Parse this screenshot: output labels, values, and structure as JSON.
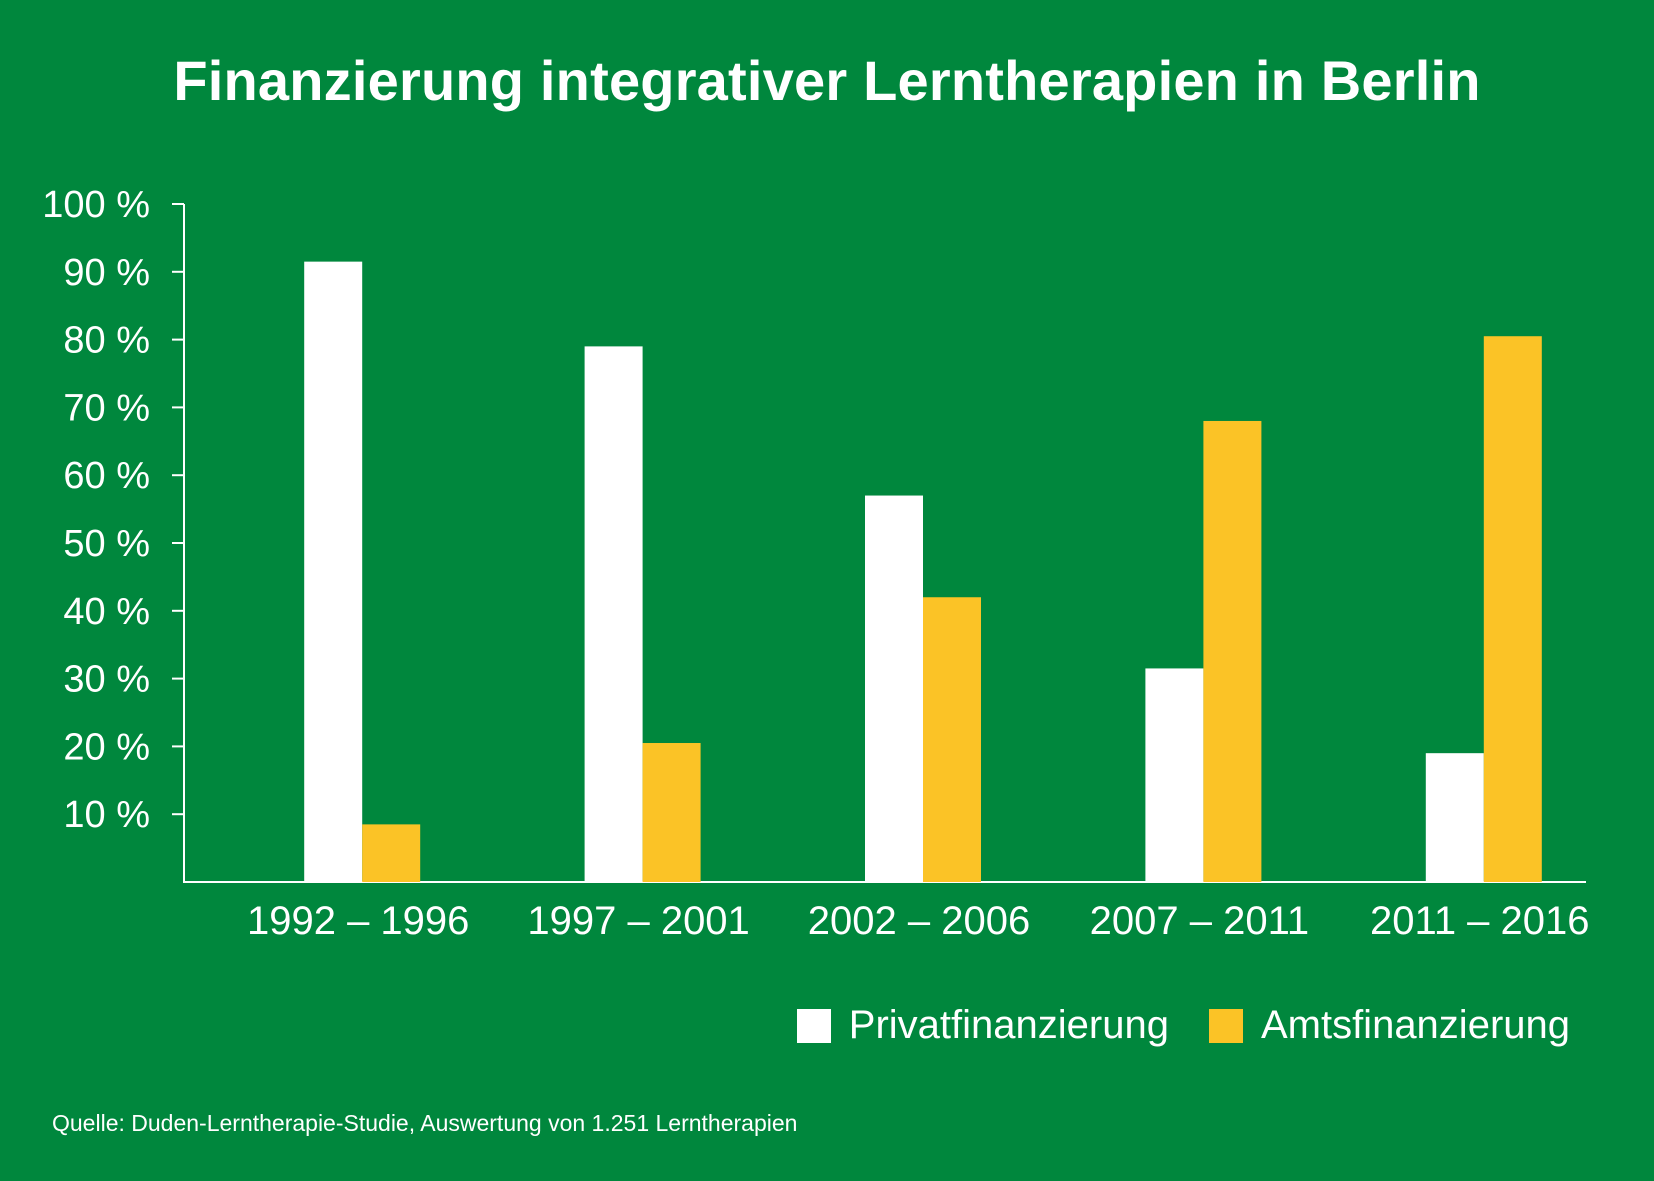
{
  "title": "Finanzierung integrativer Lerntherapien in Berlin",
  "chart_data": {
    "type": "bar",
    "title": "Finanzierung integrativer Lerntherapien in Berlin",
    "xlabel": "",
    "ylabel": "",
    "ylim": [
      0,
      100
    ],
    "yticks": [
      "10 %",
      "20 %",
      "30 %",
      "40 %",
      "50 %",
      "60 %",
      "70 %",
      "80 %",
      "90 %",
      "100 %"
    ],
    "categories": [
      "1992 – 1996",
      "1997 – 2001",
      "2002 – 2006",
      "2007 – 2011",
      "2011 – 2016"
    ],
    "series": [
      {
        "name": "Privatfinanzierung",
        "color": "#ffffff",
        "values": [
          91.5,
          79,
          57,
          31.5,
          19
        ]
      },
      {
        "name": "Amtsfinanzierung",
        "color": "#fbc326",
        "values": [
          8.5,
          20.5,
          42,
          68,
          80.5
        ]
      }
    ],
    "grid": false,
    "legend": "bottom-right"
  },
  "source": "Quelle: Duden-Lerntherapie-Studie, Auswertung von 1.251 Lerntherapien"
}
